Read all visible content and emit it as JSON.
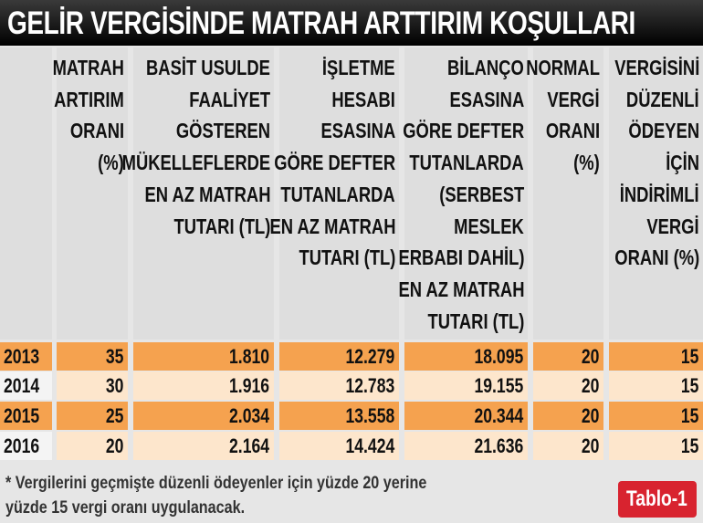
{
  "header": {
    "title": "GELİR VERGİSİNDE MATRAH ARTTIRIM KOŞULLARI"
  },
  "table": {
    "columns": [
      [
        "MATRAH",
        "ARTIRIM",
        "ORANI",
        "(%)"
      ],
      [
        "BASİT USULDE",
        "FAALİYET",
        "GÖSTEREN",
        "MÜKELLEFLERDE",
        "EN AZ MATRAH",
        "TUTARI (TL)"
      ],
      [
        "İŞLETME",
        "HESABI",
        "ESASINA",
        "GÖRE DEFTER",
        "TUTANLARDA",
        "EN AZ MATRAH",
        "TUTARI (TL)"
      ],
      [
        "BİLANÇO",
        "ESASINA",
        "GÖRE DEFTER",
        "TUTANLARDA",
        "(SERBEST",
        "MESLEK",
        "ERBABI DAHİL)",
        "EN AZ MATRAH",
        "TUTARI (TL)"
      ],
      [
        "NORMAL",
        "VERGİ",
        "ORANI",
        "(%)"
      ],
      [
        "VERGİSİNİ",
        "DÜZENLİ",
        "ÖDEYEN",
        "İÇİN",
        "İNDİRİMLİ",
        "VERGİ",
        "ORANI (%)"
      ]
    ],
    "rows": [
      [
        "2013",
        "35",
        "1.810",
        "12.279",
        "18.095",
        "20",
        "15"
      ],
      [
        "2014",
        "30",
        "1.916",
        "12.783",
        "19.155",
        "20",
        "15"
      ],
      [
        "2015",
        "25",
        "2.034",
        "13.558",
        "20.344",
        "20",
        "15"
      ],
      [
        "2016",
        "20",
        "2.164",
        "14.424",
        "21.636",
        "20",
        "15"
      ]
    ]
  },
  "footnote": [
    "* Vergilerini geçmişte düzenli ödeyenler için yüzde 20 yerine",
    "yüzde 15 vergi oranı uygulanacak."
  ],
  "badge": "Tablo-1"
}
